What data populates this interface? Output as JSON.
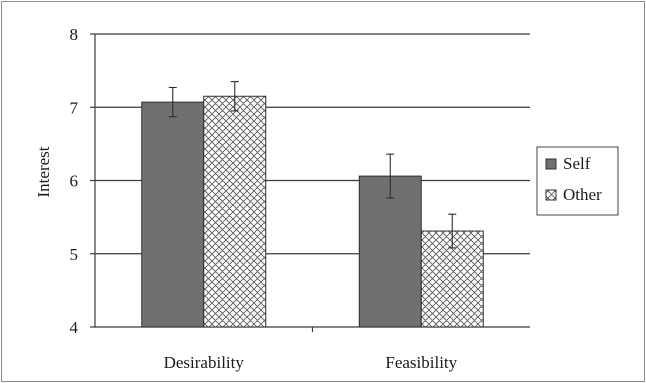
{
  "chart_data": {
    "type": "bar",
    "categories": [
      "Desirability",
      "Feasibility"
    ],
    "series": [
      {
        "name": "Self",
        "values": [
          7.07,
          6.06
        ],
        "errors": [
          0.2,
          0.3
        ],
        "color": "#707070",
        "pattern": "solid"
      },
      {
        "name": "Other",
        "values": [
          7.15,
          5.31
        ],
        "errors": [
          0.2,
          0.23
        ],
        "color": "#ffffff",
        "pattern": "crosshatch"
      }
    ],
    "title": "",
    "xlabel": "",
    "ylabel": "Interest",
    "ylim": [
      4,
      8
    ],
    "yticks": [
      4,
      5,
      6,
      7,
      8
    ],
    "grid": true,
    "legend_position": "right"
  }
}
